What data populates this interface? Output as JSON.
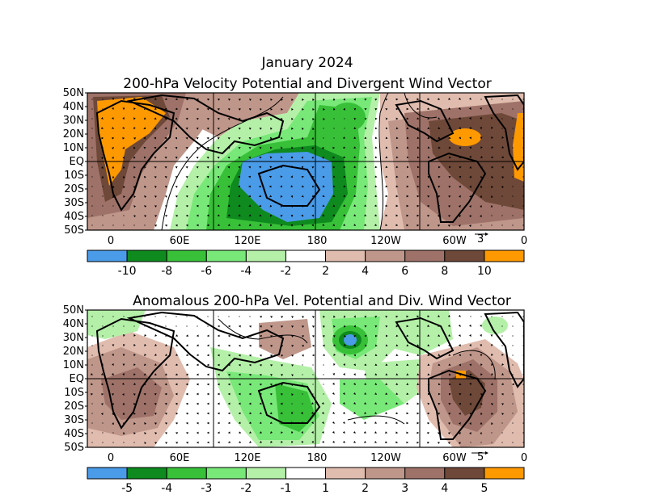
{
  "header": {
    "month_title": "January 2024",
    "top_title": "200-hPa Velocity Potential and Divergent Wind Vector",
    "bottom_title": "Anomalous 200-hPa Vel. Potential and Div. Wind Vector"
  },
  "axes": {
    "lat_labels": [
      "50N",
      "40N",
      "30N",
      "20N",
      "10N",
      "EQ",
      "10S",
      "20S",
      "30S",
      "40S",
      "50S"
    ],
    "lon_labels": [
      "0",
      "60E",
      "120E",
      "180",
      "120W",
      "60W",
      "0"
    ]
  },
  "top_panel": {
    "vector_scale_label": "3",
    "colorbar": {
      "labels": [
        "-10",
        "-8",
        "-6",
        "-4",
        "-2",
        "2",
        "4",
        "6",
        "8",
        "10"
      ],
      "colors": [
        "#4a9be8",
        "#0e8a1e",
        "#38c038",
        "#78e878",
        "#b4f0a8",
        "#ffffff",
        "#e0bcaf",
        "#bf968a",
        "#9e7268",
        "#6e4838",
        "#ff9900"
      ]
    }
  },
  "bottom_panel": {
    "vector_scale_label": "5",
    "colorbar": {
      "labels": [
        "-5",
        "-4",
        "-3",
        "-2",
        "-1",
        "1",
        "2",
        "3",
        "4",
        "5"
      ],
      "colors": [
        "#4a9be8",
        "#0e8a1e",
        "#38c038",
        "#78e878",
        "#b4f0a8",
        "#ffffff",
        "#e0bcaf",
        "#bf968a",
        "#9e7268",
        "#6e4838",
        "#ff9900"
      ]
    }
  }
}
